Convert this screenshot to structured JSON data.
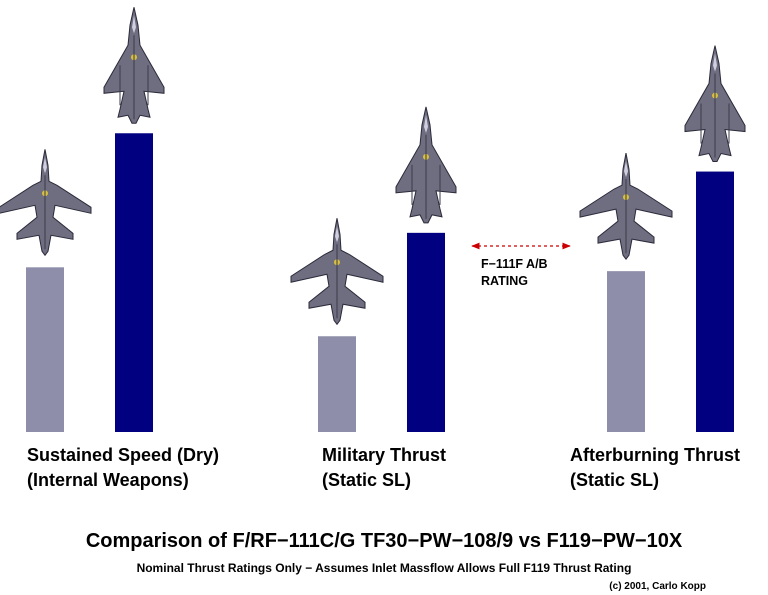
{
  "chart_data": {
    "type": "bar",
    "title": "Comparison of F/RF−111C/G TF30−PW−108/9 vs F119−PW−10X",
    "subtitle": "Nominal Thrust Ratings Only − Assumes Inlet Massflow Allows Full F119 Thrust Rating",
    "credit": "(c) 2001, Carlo Kopp",
    "categories": [
      [
        "Sustained Speed (Dry)",
        "(Internal Weapons)"
      ],
      [
        "Military Thrust",
        "(Static SL)"
      ],
      [
        "Afterburning Thrust",
        "(Static SL)"
      ]
    ],
    "series": [
      {
        "values": [
          0.43,
          0.25,
          0.42
        ],
        "color": "#8e8eaa"
      },
      {
        "values": [
          0.78,
          0.52,
          0.68
        ],
        "color": "#000080"
      }
    ],
    "ylim": [
      0,
      1
    ],
    "grid": false,
    "annotation": {
      "lines": [
        "F−111F A/B",
        "RATING"
      ],
      "color": "#cc0000"
    },
    "icons": [
      "f111-aircraft-icon",
      "f22-aircraft-icon"
    ]
  }
}
